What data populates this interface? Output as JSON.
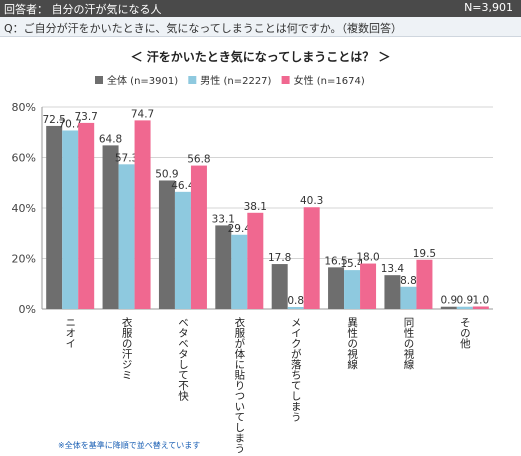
{
  "header": {
    "respondent": "回答者： 自分の汗が気になる人",
    "count": "N=3,901"
  },
  "question": "Q：ご自分が汗をかいたときに、気になってしまうことは何ですか。（複数回答）",
  "note": "※全体を基準に降順で並べ替えています",
  "colors": {
    "series": [
      "#6e6e6e",
      "#8ec9df",
      "#f06890"
    ]
  },
  "chart_data": {
    "type": "bar",
    "title": "＜ 汗をかいたとき気になってしまうことは？ ＞",
    "categories": [
      "ニオイ",
      "衣服の汗ジミ",
      "ベタベタして不快",
      "衣服が体に貼りついてしまう",
      "メイクが落ちてしまう",
      "異性の視線",
      "同性の視線",
      "その他"
    ],
    "series": [
      {
        "name": "全体 (n=3901)",
        "values": [
          72.5,
          64.8,
          50.9,
          33.1,
          17.8,
          16.5,
          13.4,
          0.9
        ]
      },
      {
        "name": "男性 (n=2227)",
        "values": [
          70.7,
          57.3,
          46.4,
          29.4,
          0.8,
          15.4,
          8.8,
          0.9
        ]
      },
      {
        "name": "女性 (n=1674)",
        "values": [
          73.7,
          74.7,
          56.8,
          38.1,
          40.3,
          18.0,
          19.5,
          1.0
        ]
      }
    ],
    "value_labels": [
      [
        "72.5",
        "64.8",
        "50.9",
        "33.1",
        "17.8",
        "16.5",
        "13.4",
        "0.9"
      ],
      [
        "70.7",
        "57.3",
        "46.4",
        "29.4",
        "0.8",
        "15.4",
        "8.8",
        "0.9"
      ],
      [
        "73.7",
        "74.7",
        "56.8",
        "38.1",
        "40.3",
        "18.0",
        "19.5",
        "1.0"
      ]
    ],
    "y_ticks": [
      "0%",
      "20%",
      "40%",
      "60%",
      "80%"
    ],
    "ylim": [
      0,
      80
    ],
    "grid": true,
    "legend": "top"
  }
}
